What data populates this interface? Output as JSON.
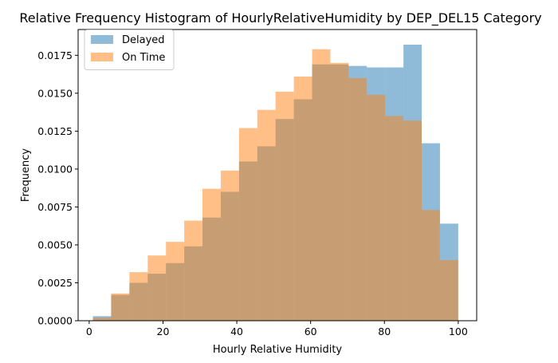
{
  "chart_data": {
    "type": "bar",
    "title": "Relative Frequency Histogram of HourlyRelativeHumidity by DEP_DEL15 Category",
    "xlabel": "Hourly Relative Humidity",
    "ylabel": "Frequency",
    "xlim": [
      -3,
      105
    ],
    "ylim": [
      0,
      0.0192
    ],
    "xticks": [
      0,
      20,
      40,
      60,
      80,
      100
    ],
    "yticks": [
      0.0,
      0.0025,
      0.005,
      0.0075,
      0.01,
      0.0125,
      0.015,
      0.0175
    ],
    "xtick_labels": [
      "0",
      "20",
      "40",
      "60",
      "80",
      "100"
    ],
    "ytick_labels": [
      "0.0000",
      "0.0025",
      "0.0050",
      "0.0075",
      "0.0100",
      "0.0125",
      "0.0150",
      "0.0175"
    ],
    "bin_edges": [
      1,
      5.95,
      10.9,
      15.85,
      20.8,
      25.75,
      30.7,
      35.65,
      40.6,
      45.55,
      50.5,
      55.45,
      60.4,
      65.35,
      70.3,
      75.25,
      80.2,
      85.15,
      90.1,
      95.05,
      100
    ],
    "grid": false,
    "legend_position": "top-left",
    "series": [
      {
        "name": "Delayed",
        "color": "#1f77b4",
        "alpha": 0.5,
        "values": [
          0.0003,
          0.0017,
          0.0025,
          0.0031,
          0.0038,
          0.0049,
          0.0068,
          0.0085,
          0.0105,
          0.0115,
          0.0133,
          0.0146,
          0.0169,
          0.0169,
          0.0168,
          0.0167,
          0.0167,
          0.0182,
          0.0117,
          0.0064
        ]
      },
      {
        "name": "On Time",
        "color": "#ff7f0e",
        "alpha": 0.5,
        "values": [
          0.0002,
          0.0018,
          0.0032,
          0.0043,
          0.0052,
          0.0066,
          0.0087,
          0.0099,
          0.0127,
          0.0139,
          0.0151,
          0.0161,
          0.0179,
          0.017,
          0.016,
          0.0149,
          0.0135,
          0.0132,
          0.0073,
          0.004
        ]
      }
    ]
  }
}
